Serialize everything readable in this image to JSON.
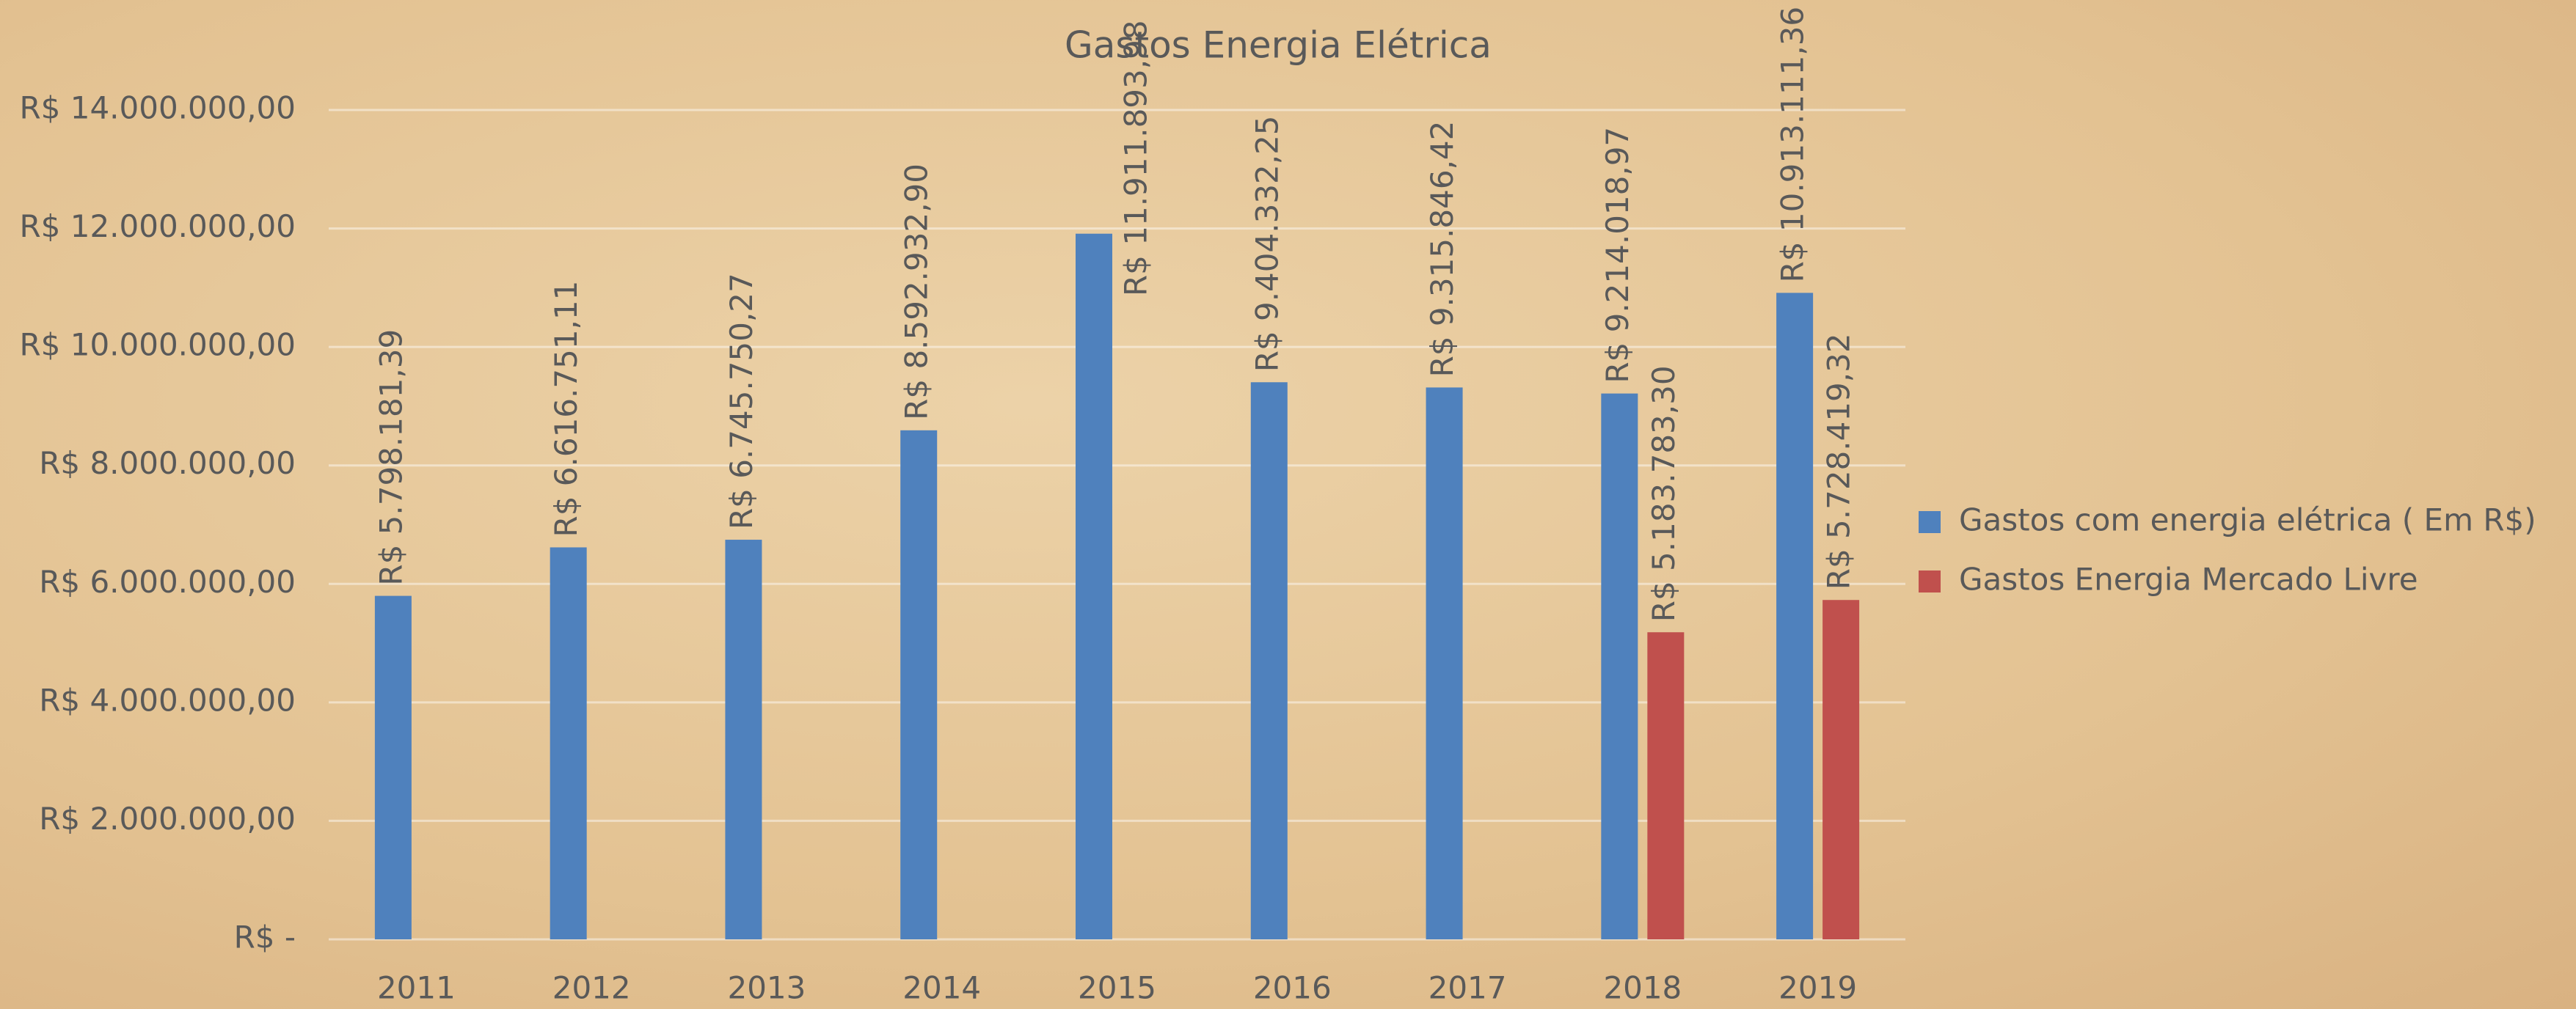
{
  "chart_data": {
    "type": "bar",
    "title": "Gastos Energia Elétrica",
    "categories": [
      "2011",
      "2012",
      "2013",
      "2014",
      "2015",
      "2016",
      "2017",
      "2018",
      "2019"
    ],
    "series": [
      {
        "name": "Gastos com energia elétrica ( Em R$)",
        "color": "#4f81bd",
        "values": [
          5798181.39,
          6616751.11,
          6745750.27,
          8592932.9,
          11911893.98,
          9404332.25,
          9315846.42,
          9214018.97,
          10913111.36
        ],
        "value_labels": [
          "R$ 5.798.181,39",
          "R$ 6.616.751,11",
          "R$ 6.745.750,27",
          "R$ 8.592.932,90",
          "R$ 11.911.893,98",
          "R$ 9.404.332,25",
          "R$ 9.315.846,42",
          "R$ 9.214.018,97",
          "R$ 10.913.111,36"
        ]
      },
      {
        "name": "Gastos Energia Mercado Livre",
        "color": "#c0504d",
        "values": [
          null,
          null,
          null,
          null,
          null,
          null,
          null,
          5183783.3,
          5728419.32
        ],
        "value_labels": [
          null,
          null,
          null,
          null,
          null,
          null,
          null,
          "R$ 5.183.783,30",
          "R$ 5.728.419,32"
        ]
      }
    ],
    "ylim": [
      0,
      14000000
    ],
    "yticks": [
      {
        "value": 0,
        "label": "R$ -"
      },
      {
        "value": 2000000,
        "label": "R$ 2.000.000,00"
      },
      {
        "value": 4000000,
        "label": "R$ 4.000.000,00"
      },
      {
        "value": 6000000,
        "label": "R$ 6.000.000,00"
      },
      {
        "value": 8000000,
        "label": "R$ 8.000.000,00"
      },
      {
        "value": 10000000,
        "label": "R$ 10.000.000,00"
      },
      {
        "value": 12000000,
        "label": "R$ 12.000.000,00"
      },
      {
        "value": 14000000,
        "label": "R$ 14.000.000,00"
      }
    ],
    "grid": true,
    "legend": "right"
  }
}
